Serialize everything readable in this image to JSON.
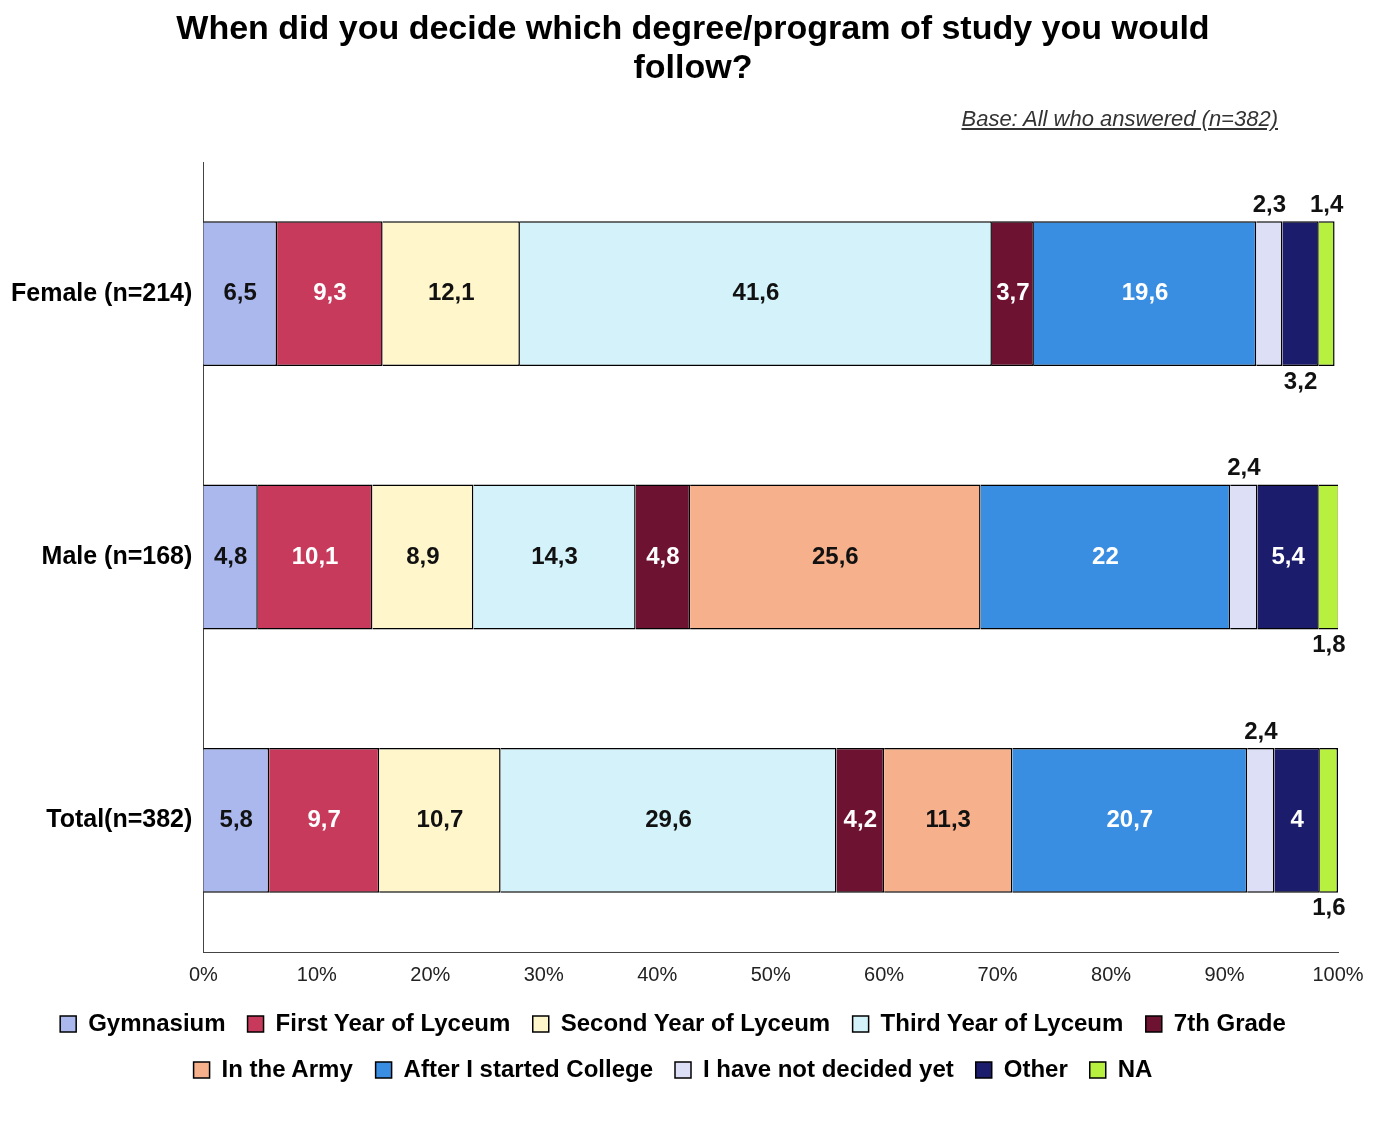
{
  "chart_data": {
    "type": "bar",
    "orientation": "horizontal",
    "stacked": true,
    "title": "When did you decide which degree/program of study you would follow?",
    "annotations": [
      "Base: All who answered (n=382)"
    ],
    "categories": [
      "Female (n=214)",
      "Male (n=168)",
      "Total(n=382)"
    ],
    "series": [
      {
        "name": "Gymnasium",
        "color": "#aab8ee",
        "values": [
          6.5,
          4.8,
          5.8
        ],
        "value_labels": [
          "6,5",
          "4,8",
          "5,8"
        ]
      },
      {
        "name": "First Year of Lyceum",
        "color": "#c83a5c",
        "values": [
          9.3,
          10.1,
          9.7
        ],
        "value_labels": [
          "9,3",
          "10,1",
          "9,7"
        ]
      },
      {
        "name": "Second Year of Lyceum",
        "color": "#fff6cc",
        "values": [
          12.1,
          8.9,
          10.7
        ],
        "value_labels": [
          "12,1",
          "8,9",
          "10,7"
        ]
      },
      {
        "name": "Third Year of Lyceum",
        "color": "#d4f2fa",
        "values": [
          41.6,
          14.3,
          29.6
        ],
        "value_labels": [
          "41,6",
          "14,3",
          "29,6"
        ]
      },
      {
        "name": "7th Grade",
        "color": "#6e1232",
        "values": [
          3.7,
          4.8,
          4.2
        ],
        "value_labels": [
          "3,7",
          "4,8",
          "4,2"
        ]
      },
      {
        "name": "In the Army",
        "color": "#f6b08c",
        "values": [
          null,
          25.6,
          11.3
        ],
        "value_labels": [
          null,
          "25,6",
          "11,3"
        ]
      },
      {
        "name": "After I started College",
        "color": "#3a8ee2",
        "values": [
          19.6,
          22,
          20.7
        ],
        "value_labels": [
          "19,6",
          "22",
          "20,7"
        ]
      },
      {
        "name": "I have not decided yet",
        "color": "#dcdff6",
        "values": [
          2.3,
          2.4,
          2.4
        ],
        "value_labels": [
          "2,3",
          "2,4",
          "2,4"
        ]
      },
      {
        "name": "Other",
        "color": "#1c1c6c",
        "values": [
          3.2,
          5.4,
          4
        ],
        "value_labels": [
          "3,2",
          "5,4",
          "4"
        ]
      },
      {
        "name": "NA",
        "color": "#b8f040",
        "values": [
          1.4,
          1.8,
          1.6
        ],
        "value_labels": [
          "1,4",
          "1,8",
          "1,6"
        ]
      }
    ],
    "xlim": [
      0,
      100
    ],
    "xticks": [
      {
        "value": 0,
        "label": "0%"
      },
      {
        "value": 10,
        "label": "10%"
      },
      {
        "value": 20,
        "label": "20%"
      },
      {
        "value": 30,
        "label": "30%"
      },
      {
        "value": 40,
        "label": "40%"
      },
      {
        "value": 50,
        "label": "50%"
      },
      {
        "value": 60,
        "label": "60%"
      },
      {
        "value": 70,
        "label": "70%"
      },
      {
        "value": 80,
        "label": "80%"
      },
      {
        "value": 90,
        "label": "90%"
      },
      {
        "value": 100,
        "label": "100%"
      }
    ],
    "grid": false,
    "legend": "bottom"
  }
}
